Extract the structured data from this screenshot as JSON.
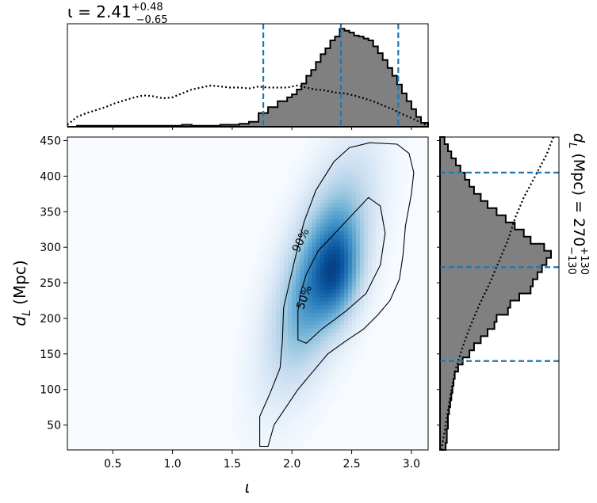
{
  "chart_data": [
    {
      "panel": "joint",
      "type": "heatmap",
      "xlabel": "ι",
      "ylabel": "d_L (Mpc)",
      "xlim": [
        0.12,
        3.14
      ],
      "ylim": [
        15,
        455
      ],
      "xticks": [
        0.5,
        1.0,
        1.5,
        2.0,
        2.5,
        3.0
      ],
      "xtick_labels": [
        "0.5",
        "1.0",
        "1.5",
        "2.0",
        "2.5",
        "3.0"
      ],
      "yticks": [
        50,
        100,
        150,
        200,
        250,
        300,
        350,
        400,
        450
      ],
      "ytick_labels": [
        "50",
        "100",
        "150",
        "200",
        "250",
        "300",
        "350",
        "400",
        "450"
      ],
      "colormap": "Blues",
      "density_peak": {
        "x": 2.4,
        "y": 260
      },
      "contours": [
        {
          "label": "50%",
          "label_pos": [
            2.1,
            230
          ],
          "label_angle": -70,
          "points": [
            [
              2.05,
              210
            ],
            [
              2.05,
              170
            ],
            [
              2.12,
              165
            ],
            [
              2.25,
              185
            ],
            [
              2.45,
              210
            ],
            [
              2.62,
              235
            ],
            [
              2.74,
              275
            ],
            [
              2.78,
              320
            ],
            [
              2.74,
              358
            ],
            [
              2.64,
              370
            ],
            [
              2.5,
              345
            ],
            [
              2.35,
              318
            ],
            [
              2.22,
              295
            ],
            [
              2.12,
              262
            ],
            [
              2.07,
              235
            ]
          ]
        },
        {
          "label": "90%",
          "label_pos": [
            2.07,
            310
          ],
          "label_angle": -65,
          "points": [
            [
              1.73,
              20
            ],
            [
              1.73,
              62
            ],
            [
              1.82,
              96
            ],
            [
              1.9,
              130
            ],
            [
              1.92,
              168
            ],
            [
              1.93,
              215
            ],
            [
              2.02,
              280
            ],
            [
              2.1,
              335
            ],
            [
              2.2,
              380
            ],
            [
              2.35,
              420
            ],
            [
              2.48,
              440
            ],
            [
              2.65,
              447
            ],
            [
              2.88,
              445
            ],
            [
              2.98,
              432
            ],
            [
              3.02,
              405
            ],
            [
              3.0,
              375
            ],
            [
              2.95,
              330
            ],
            [
              2.93,
              290
            ],
            [
              2.9,
              255
            ],
            [
              2.82,
              225
            ],
            [
              2.72,
              205
            ],
            [
              2.6,
              185
            ],
            [
              2.45,
              168
            ],
            [
              2.3,
              150
            ],
            [
              2.15,
              120
            ],
            [
              2.05,
              100
            ],
            [
              1.95,
              75
            ],
            [
              1.85,
              50
            ],
            [
              1.8,
              20
            ]
          ]
        }
      ]
    },
    {
      "panel": "top-marginal",
      "type": "histogram",
      "title": "ι = 2.41",
      "title_sup": "+0.48",
      "title_sub": "−0.65",
      "xlim": [
        0.12,
        3.14
      ],
      "ylim": [
        0,
        1.05
      ],
      "posterior": {
        "edges": [
          0.12,
          0.2,
          0.28,
          0.36,
          0.44,
          0.52,
          0.6,
          0.68,
          0.76,
          0.84,
          0.92,
          1.0,
          1.08,
          1.16,
          1.24,
          1.32,
          1.4,
          1.48,
          1.56,
          1.64,
          1.72,
          1.8,
          1.88,
          1.96,
          2.0,
          2.04,
          2.08,
          2.12,
          2.16,
          2.2,
          2.24,
          2.28,
          2.32,
          2.36,
          2.4,
          2.44,
          2.48,
          2.52,
          2.56,
          2.6,
          2.64,
          2.68,
          2.72,
          2.76,
          2.8,
          2.84,
          2.88,
          2.92,
          2.96,
          3.0,
          3.04,
          3.08,
          3.14
        ],
        "heights": [
          0,
          0.01,
          0.01,
          0.01,
          0.01,
          0.01,
          0.01,
          0.01,
          0.01,
          0.01,
          0.01,
          0.01,
          0.02,
          0.01,
          0.01,
          0.01,
          0.02,
          0.02,
          0.03,
          0.05,
          0.14,
          0.2,
          0.26,
          0.3,
          0.33,
          0.38,
          0.44,
          0.52,
          0.58,
          0.66,
          0.74,
          0.8,
          0.88,
          0.92,
          1.0,
          0.98,
          0.96,
          0.93,
          0.92,
          0.9,
          0.88,
          0.82,
          0.75,
          0.68,
          0.6,
          0.52,
          0.43,
          0.34,
          0.26,
          0.18,
          0.1,
          0.04
        ]
      },
      "prior": {
        "x": [
          0.12,
          0.16,
          0.2,
          0.28,
          0.36,
          0.44,
          0.52,
          0.6,
          0.68,
          0.76,
          0.84,
          0.92,
          1.0,
          1.08,
          1.16,
          1.24,
          1.32,
          1.4,
          1.48,
          1.56,
          1.64,
          1.72,
          1.8,
          1.88,
          1.96,
          2.04,
          2.12,
          2.2,
          2.28,
          2.36,
          2.44,
          2.52,
          2.6,
          2.68,
          2.76,
          2.84,
          2.92,
          3.0,
          3.08,
          3.14
        ],
        "y": [
          0.02,
          0.06,
          0.1,
          0.14,
          0.17,
          0.2,
          0.24,
          0.27,
          0.3,
          0.32,
          0.31,
          0.29,
          0.3,
          0.34,
          0.38,
          0.4,
          0.42,
          0.41,
          0.4,
          0.4,
          0.39,
          0.41,
          0.4,
          0.4,
          0.4,
          0.42,
          0.4,
          0.38,
          0.37,
          0.35,
          0.34,
          0.32,
          0.29,
          0.26,
          0.22,
          0.18,
          0.13,
          0.09,
          0.04,
          0.01
        ]
      },
      "vlines": [
        1.76,
        2.41,
        2.89
      ]
    },
    {
      "panel": "right-marginal",
      "type": "histogram",
      "orientation": "horizontal",
      "label": "d_L (Mpc) = 270",
      "label_sup": "+130",
      "label_sub": "−130",
      "ylim": [
        15,
        455
      ],
      "xlim": [
        0,
        1.05
      ],
      "posterior": {
        "edges": [
          15,
          25,
          35,
          45,
          55,
          65,
          75,
          85,
          95,
          105,
          115,
          125,
          135,
          145,
          155,
          165,
          175,
          185,
          195,
          205,
          215,
          225,
          235,
          245,
          255,
          265,
          275,
          285,
          295,
          305,
          315,
          325,
          335,
          345,
          355,
          365,
          375,
          385,
          395,
          405,
          415,
          425,
          435,
          445,
          455
        ],
        "widths": [
          0.05,
          0.06,
          0.06,
          0.07,
          0.07,
          0.08,
          0.09,
          0.1,
          0.11,
          0.12,
          0.13,
          0.16,
          0.2,
          0.26,
          0.3,
          0.36,
          0.42,
          0.48,
          0.5,
          0.6,
          0.62,
          0.7,
          0.8,
          0.82,
          0.86,
          0.9,
          0.94,
          0.98,
          0.92,
          0.8,
          0.74,
          0.66,
          0.58,
          0.5,
          0.42,
          0.36,
          0.3,
          0.26,
          0.22,
          0.18,
          0.14,
          0.1,
          0.07,
          0.04
        ]
      },
      "prior": {
        "y": [
          15,
          40,
          70,
          100,
          130,
          160,
          190,
          220,
          250,
          280,
          310,
          340,
          370,
          400,
          430,
          455
        ],
        "x": [
          0.01,
          0.04,
          0.07,
          0.1,
          0.14,
          0.2,
          0.27,
          0.35,
          0.44,
          0.52,
          0.6,
          0.66,
          0.74,
          0.84,
          0.94,
          1.0
        ]
      },
      "hlines": [
        140,
        272,
        405
      ]
    }
  ]
}
